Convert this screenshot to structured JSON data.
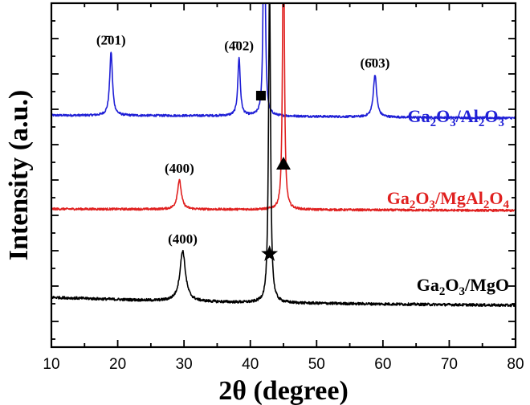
{
  "chart_data": {
    "type": "line",
    "xlabel": "2θ (degree)",
    "ylabel": "Intensity (a.u.)",
    "xlim": [
      10,
      80
    ],
    "xticks": [
      "10",
      "20",
      "30",
      "40",
      "50",
      "60",
      "70",
      "80"
    ],
    "y_tick_labels_shown": false,
    "grid": false,
    "series": [
      {
        "key": "al2o3",
        "name_parts": [
          {
            "t": "Ga"
          },
          {
            "t": "2",
            "sub": true
          },
          {
            "t": "O"
          },
          {
            "t": "3",
            "sub": true
          },
          {
            "t": "/Al"
          },
          {
            "t": "2",
            "sub": true
          },
          {
            "t": "O"
          },
          {
            "t": "3",
            "sub": true
          }
        ],
        "color": "#1f1fd6",
        "baseline": [
          [
            10,
            0.62
          ],
          [
            40,
            0.6
          ],
          [
            60,
            0.55
          ],
          [
            80,
            0.52
          ]
        ],
        "peaks": [
          {
            "x": 19.0,
            "height": 2.4,
            "width": 0.25
          },
          {
            "x": 38.3,
            "height": 2.2,
            "width": 0.22
          },
          {
            "x": 42.1,
            "height": 12,
            "width": 0.14
          },
          {
            "x": 58.8,
            "height": 1.6,
            "width": 0.3
          }
        ],
        "noise": 0.04
      },
      {
        "key": "mgal2o4",
        "name_parts": [
          {
            "t": "Ga"
          },
          {
            "t": "2",
            "sub": true
          },
          {
            "t": "O"
          },
          {
            "t": "3",
            "sub": true
          },
          {
            "t": "/MgAl"
          },
          {
            "t": "2",
            "sub": true
          },
          {
            "t": "O"
          },
          {
            "t": "4",
            "sub": true
          }
        ],
        "color": "#e0201f",
        "baseline": [
          [
            10,
            0.12
          ],
          [
            40,
            0.1
          ],
          [
            80,
            0.06
          ]
        ],
        "peaks": [
          {
            "x": 29.3,
            "height": 1.1,
            "width": 0.35
          },
          {
            "x": 45.0,
            "height": 12,
            "width": 0.15
          }
        ],
        "noise": 0.04
      },
      {
        "key": "mgo",
        "name_parts": [
          {
            "t": "Ga"
          },
          {
            "t": "2",
            "sub": true
          },
          {
            "t": "O"
          },
          {
            "t": "3",
            "sub": true
          },
          {
            "t": "/MgO"
          }
        ],
        "color": "#000000",
        "baseline": [
          [
            10,
            0.3
          ],
          [
            25,
            0.18
          ],
          [
            40,
            0.1
          ],
          [
            60,
            0.05
          ],
          [
            80,
            0.0
          ]
        ],
        "peaks": [
          {
            "x": 29.8,
            "height": 1.9,
            "width": 0.5
          },
          {
            "x": 42.9,
            "height": 12,
            "width": 0.18
          }
        ],
        "noise": 0.05
      }
    ],
    "peak_labels": [
      {
        "series": "al2o3",
        "text": "(2̄01)",
        "x": 19.0
      },
      {
        "series": "al2o3",
        "text": "(4̄02)",
        "x": 38.3
      },
      {
        "series": "al2o3",
        "text": "(6̄03)",
        "x": 58.8
      },
      {
        "series": "mgal2o4",
        "text": "(400)",
        "x": 29.3
      },
      {
        "series": "mgo",
        "text": "(400)",
        "x": 29.8
      }
    ],
    "markers": [
      {
        "series": "al2o3",
        "shape": "square",
        "x": 41.6
      },
      {
        "series": "mgal2o4",
        "shape": "triangle",
        "x": 45.0
      },
      {
        "series": "mgo",
        "shape": "star",
        "x": 42.9
      }
    ]
  }
}
